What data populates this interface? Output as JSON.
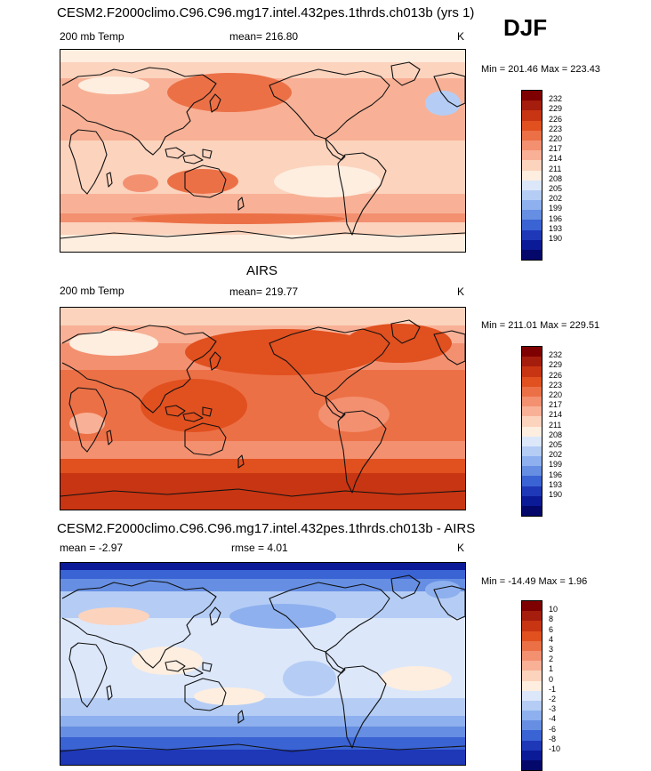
{
  "season": "DJF",
  "panels": [
    {
      "id": "model",
      "title": "CESM2.F2000climo.C96.C96.mg17.intel.432pes.1thrds.ch013b (yrs 1)",
      "left_label": "200 mb Temp",
      "center_label": "mean=  216.80",
      "units": "K",
      "minmax": "Min = 201.46 Max = 223.43",
      "colorbar_labels": [
        "232",
        "229",
        "226",
        "223",
        "220",
        "217",
        "214",
        "211",
        "208",
        "205",
        "202",
        "199",
        "196",
        "193",
        "190"
      ]
    },
    {
      "id": "obs",
      "title": "AIRS",
      "left_label": "200 mb Temp",
      "center_label": "mean=  219.77",
      "units": "K",
      "minmax": "Min = 211.01 Max = 229.51",
      "colorbar_labels": [
        "232",
        "229",
        "226",
        "223",
        "220",
        "217",
        "214",
        "211",
        "208",
        "205",
        "202",
        "199",
        "196",
        "193",
        "190"
      ]
    },
    {
      "id": "diff",
      "title": "CESM2.F2000climo.C96.C96.mg17.intel.432pes.1thrds.ch013b - AIRS",
      "left_label": "mean =  -2.97",
      "center_label": "rmse =   4.01",
      "units": "K",
      "minmax": "Min = -14.49 Max =   1.96",
      "colorbar_labels": [
        "10",
        "8",
        "6",
        "4",
        "3",
        "2",
        "1",
        "0",
        "-1",
        "-2",
        "-3",
        "-4",
        "-6",
        "-8",
        "-10"
      ]
    }
  ],
  "colors": {
    "temp_scale": [
      "#7f0000",
      "#a51d0c",
      "#c83512",
      "#e1501f",
      "#ec7046",
      "#f39070",
      "#f8b196",
      "#fcd3bd",
      "#fdeee0",
      "#dce7fa",
      "#b5cdf5",
      "#8eb0ee",
      "#668fe3",
      "#3a63d4",
      "#1e38b8",
      "#0b1a96",
      "#04086b"
    ],
    "diff_scale": [
      "#7f0000",
      "#a51d0c",
      "#c83512",
      "#e1501f",
      "#ec7046",
      "#f39070",
      "#f8b196",
      "#fcd3bd",
      "#fdeee0",
      "#dce7fa",
      "#b5cdf5",
      "#8eb0ee",
      "#668fe3",
      "#3a63d4",
      "#1e38b8",
      "#0b1a96",
      "#04086b"
    ]
  }
}
